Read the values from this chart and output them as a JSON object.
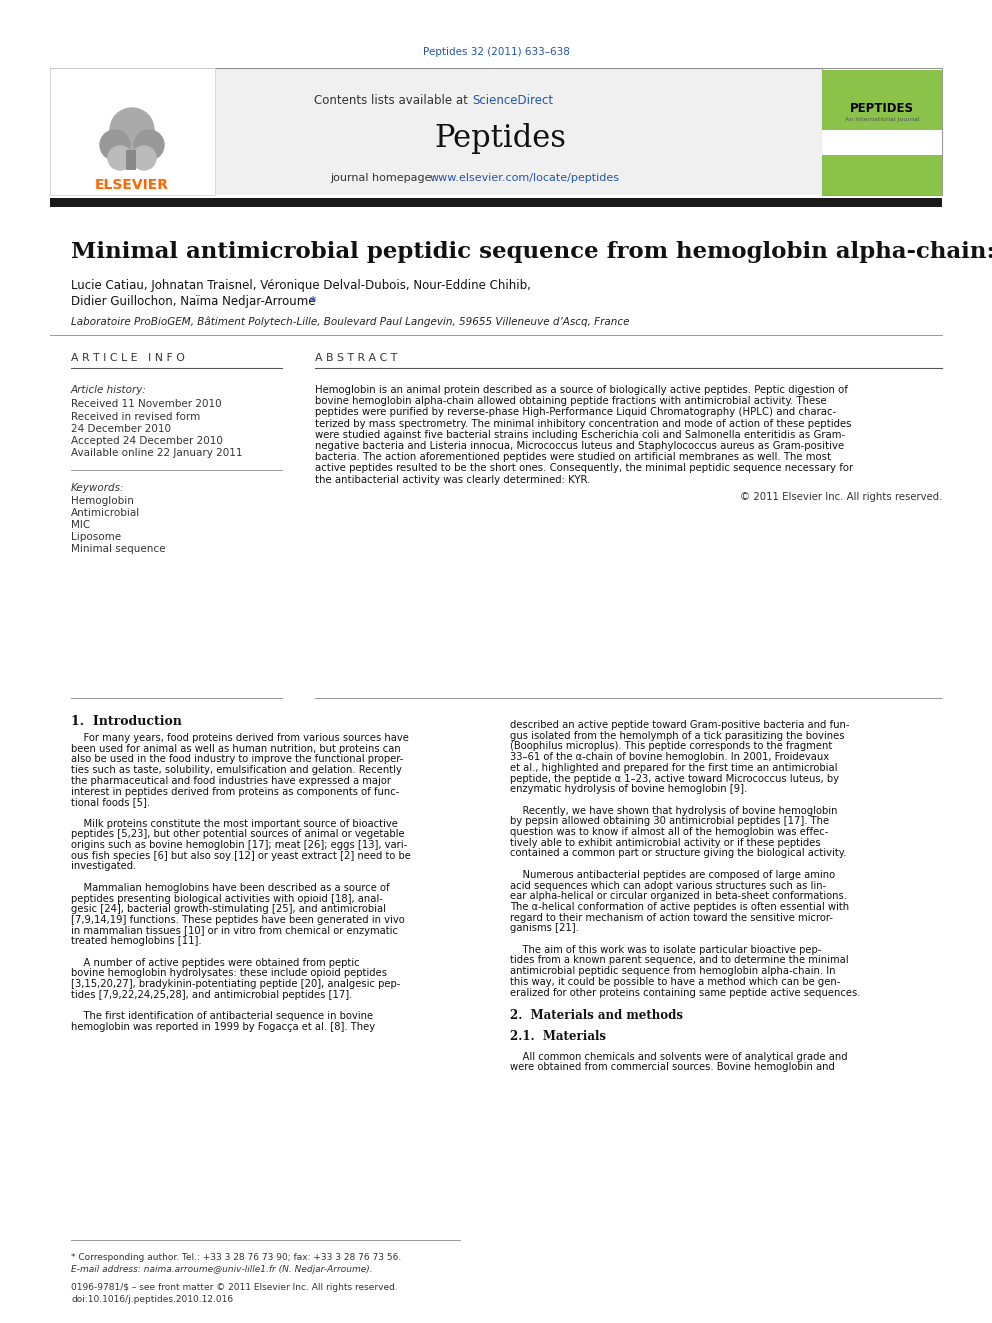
{
  "page_color": "#ffffff",
  "header_journal_ref": "Peptides 32 (2011) 633–638",
  "header_journal_ref_color": "#2255aa",
  "contents_text": "Contents lists available at ",
  "sciencedirect_text": "ScienceDirect",
  "sciencedirect_color": "#2255aa",
  "journal_name": "Peptides",
  "journal_homepage_text": "journal homepage: ",
  "journal_homepage_url": "www.elsevier.com/locate/peptides",
  "journal_homepage_url_color": "#2255aa",
  "header_bg_color": "#f0f0f0",
  "thick_bar_color": "#1a1a1a",
  "paper_title": "Minimal antimicrobial peptidic sequence from hemoglobin alpha-chain: KYR",
  "authors_line1": "Lucie Catiau, Johnatan Traisnel, Véronique Delval-Dubois, Nour-Eddine Chihib,",
  "authors_line2": "Didier Guillochon, Naïma Nedjar-Arroume",
  "author_asterisk": "*",
  "affiliation": "Laboratoire ProBioGEM, Bâtiment Polytech-Lille, Boulevard Paul Langevin, 59655 Villeneuve d’Ascq, France",
  "article_info_header": "A R T I C L E   I N F O",
  "abstract_header": "A B S T R A C T",
  "article_history_label": "Article history:",
  "received_text": "Received 11 November 2010",
  "revised_line1": "Received in revised form",
  "revised_line2": "24 December 2010",
  "accepted_text": "Accepted 24 December 2010",
  "available_text": "Available online 22 January 2011",
  "keywords_label": "Keywords:",
  "keywords": [
    "Hemoglobin",
    "Antimicrobial",
    "MIC",
    "Liposome",
    "Minimal sequence"
  ],
  "abstract_text": "Hemoglobin is an animal protein described as a source of biologically active peptides. Peptic digestion of bovine hemoglobin alpha-chain allowed obtaining peptide fractions with antimicrobial activity. These peptides were purified by reverse-phase High-Performance Liquid Chromatography (HPLC) and characterized by mass spectrometry. The minimal inhibitory concentration and mode of action of these peptides were studied against five bacterial strains including Escherichia coli and Salmonella enteritidis as Gram-negative bacteria and Listeria innocua, Micrococcus luteus and Staphylococcus aureus as Gram-positive bacteria. The action aforementioned peptides were studied on artificial membranes as well. The most active peptides resulted to be the short ones. Consequently, the minimal peptidic sequence necessary for the antibacterial activity was clearly determined: KYR.",
  "copyright_text": "© 2011 Elsevier Inc. All rights reserved.",
  "intro_header": "1.  Introduction",
  "footer_corresponding": "* Corresponding author. Tel.: +33 3 28 76 73 90; fax: +33 3 28 76 73 56.",
  "footer_email": "E-mail address: naima.arroume@univ-lille1.fr (N. Nedjar-Arroume).",
  "footer_issn": "0196-9781/$ – see front matter © 2011 Elsevier Inc. All rights reserved.",
  "footer_doi": "doi:10.1016/j.peptides.2010.12.016",
  "elsevier_color": "#FF6600"
}
